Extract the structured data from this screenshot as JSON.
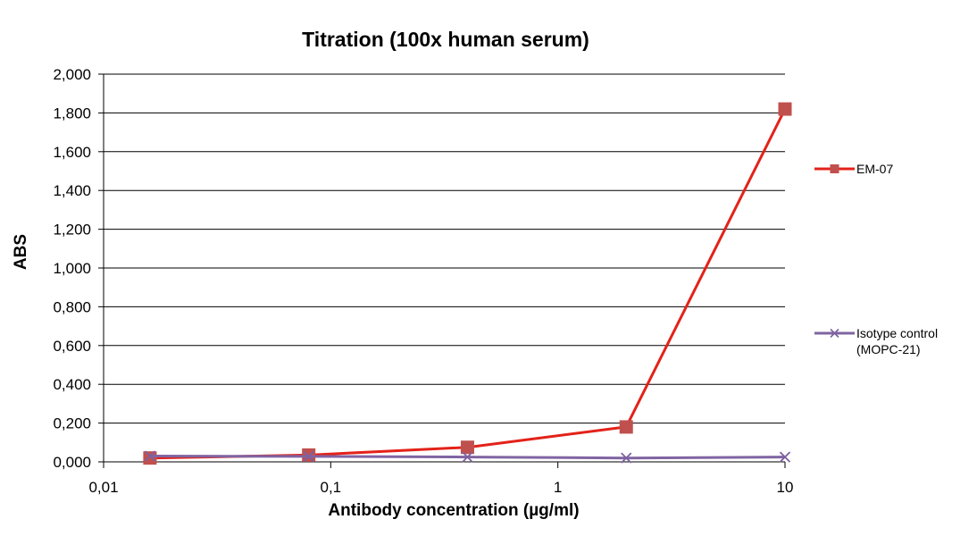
{
  "chart_data": {
    "type": "line",
    "title": "Titration (100x human serum)",
    "xlabel": "Antibody concentration (µg/ml)",
    "ylabel": "ABS",
    "x_scale": "log",
    "xlim": [
      0.01,
      10
    ],
    "ylim": [
      0,
      2
    ],
    "x_ticks": [
      "0,01",
      "0,1",
      "1",
      "10"
    ],
    "y_ticks": [
      "0,000",
      "0,200",
      "0,400",
      "0,600",
      "0,800",
      "1,000",
      "1,200",
      "1,400",
      "1,600",
      "1,800",
      "2,000"
    ],
    "grid": "horizontal",
    "legend_position": "right",
    "series": [
      {
        "name": "EM-07",
        "color": "#e32219",
        "marker_color": "#c0504d",
        "marker": "square",
        "x": [
          0.016,
          0.08,
          0.4,
          2,
          10
        ],
        "y": [
          0.02,
          0.035,
          0.075,
          0.18,
          1.82
        ]
      },
      {
        "name": "Isotype control (MOPC-21)",
        "name_lines": [
          "Isotype control",
          "(MOPC-21)"
        ],
        "color": "#8064a2",
        "marker_color": "#7d60a0",
        "marker": "x",
        "x": [
          0.016,
          0.08,
          0.4,
          2,
          10
        ],
        "y": [
          0.03,
          0.028,
          0.025,
          0.02,
          0.025
        ]
      }
    ]
  }
}
